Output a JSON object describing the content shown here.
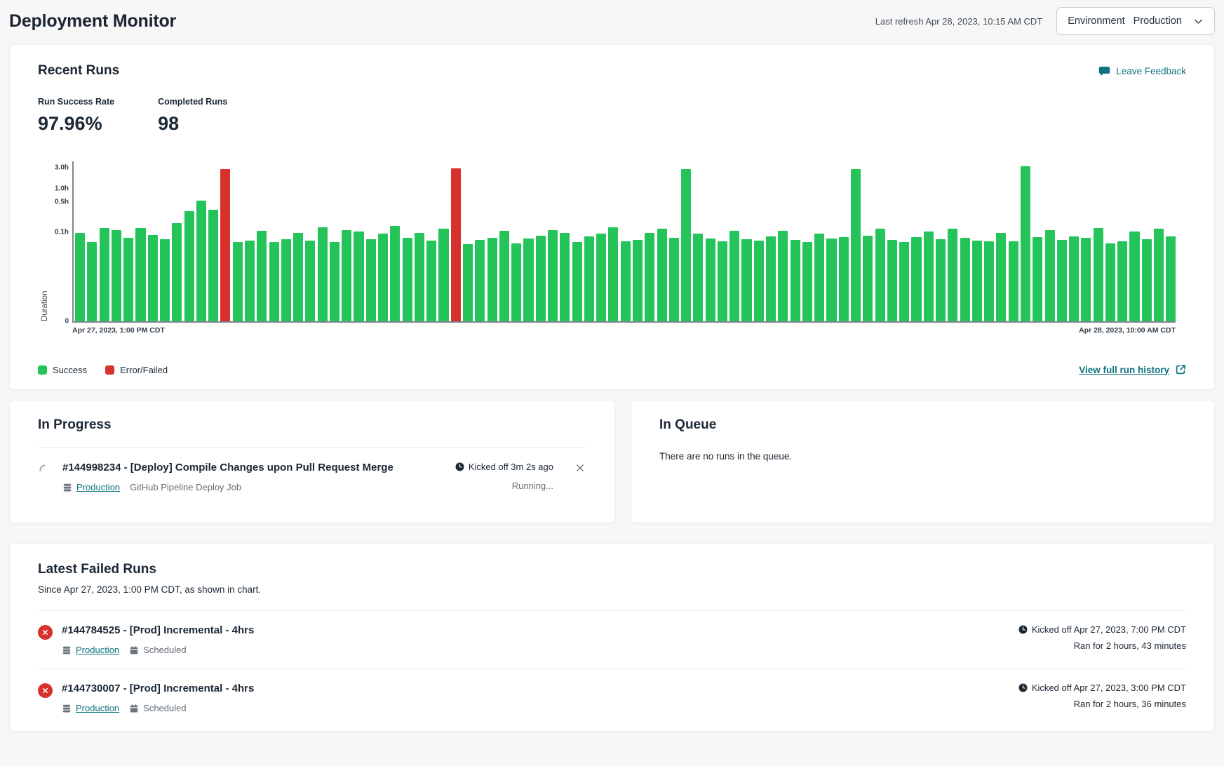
{
  "header": {
    "title": "Deployment Monitor",
    "last_refresh": "Last refresh Apr 28, 2023, 10:15 AM CDT",
    "environment_label": "Environment",
    "environment_value": "Production"
  },
  "recent_runs": {
    "title": "Recent Runs",
    "leave_feedback_label": "Leave Feedback",
    "metrics": [
      {
        "label": "Run Success Rate",
        "value": "97.96%"
      },
      {
        "label": "Completed Runs",
        "value": "98"
      }
    ],
    "view_history_label": "View full run history"
  },
  "chart_data": {
    "type": "bar",
    "ylabel": "Duration",
    "y_scale": "log",
    "yticks": [
      {
        "label": "3.0h",
        "value": 3.0
      },
      {
        "label": "1.0h",
        "value": 1.0
      },
      {
        "label": "0.5h",
        "value": 0.5
      },
      {
        "label": "0.1h",
        "value": 0.1
      },
      {
        "label": "0",
        "value": 0
      }
    ],
    "x_start_label": "Apr 27, 2023, 1:00 PM CDT",
    "x_end_label": "Apr 28, 2023, 10:00 AM CDT",
    "legend": [
      {
        "label": "Success",
        "color": "#25c45a"
      },
      {
        "label": "Error/Failed",
        "color": "#d7312e"
      }
    ],
    "colors": {
      "success": "#25c45a",
      "error": "#d7312e"
    },
    "durations_hours": [
      0.09,
      0.055,
      0.115,
      0.105,
      0.07,
      0.115,
      0.08,
      0.065,
      0.15,
      0.28,
      0.5,
      0.3,
      2.6,
      0.055,
      0.06,
      0.1,
      0.055,
      0.065,
      0.09,
      0.06,
      0.12,
      0.055,
      0.105,
      0.095,
      0.065,
      0.085,
      0.13,
      0.07,
      0.09,
      0.06,
      0.11,
      2.72,
      0.05,
      0.062,
      0.068,
      0.1,
      0.052,
      0.066,
      0.078,
      0.105,
      0.09,
      0.055,
      0.075,
      0.085,
      0.12,
      0.058,
      0.062,
      0.09,
      0.11,
      0.07,
      2.6,
      0.085,
      0.066,
      0.058,
      0.1,
      0.064,
      0.06,
      0.075,
      0.1,
      0.062,
      0.055,
      0.085,
      0.066,
      0.072,
      2.6,
      0.078,
      0.11,
      0.062,
      0.055,
      0.072,
      0.095,
      0.065,
      0.11,
      0.068,
      0.06,
      0.058,
      0.088,
      0.058,
      3.1,
      0.072,
      0.105,
      0.062,
      0.075,
      0.068,
      0.115,
      0.052,
      0.058,
      0.095,
      0.065,
      0.11,
      0.075
    ],
    "error_indices": [
      12,
      31
    ]
  },
  "in_progress": {
    "title": "In Progress",
    "run": {
      "title": "#144998234 - [Deploy] Compile Changes upon Pull Request Merge",
      "environment": "Production",
      "job": "GitHub Pipeline Deploy Job",
      "kicked_off": "Kicked off 3m 2s ago",
      "status": "Running..."
    }
  },
  "in_queue": {
    "title": "In Queue",
    "empty_message": "There are no runs in the queue."
  },
  "failed_runs": {
    "title": "Latest Failed Runs",
    "subtitle": "Since Apr 27, 2023, 1:00 PM CDT, as shown in chart.",
    "items": [
      {
        "title": "#144784525 - [Prod] Incremental - 4hrs",
        "environment": "Production",
        "schedule": "Scheduled",
        "kicked_off": "Kicked off Apr 27, 2023, 7:00 PM CDT",
        "ran_for": "Ran for 2 hours, 43 minutes"
      },
      {
        "title": "#144730007 - [Prod] Incremental - 4hrs",
        "environment": "Production",
        "schedule": "Scheduled",
        "kicked_off": "Kicked off Apr 27, 2023, 3:00 PM CDT",
        "ran_for": "Ran for 2 hours, 36 minutes"
      }
    ]
  }
}
